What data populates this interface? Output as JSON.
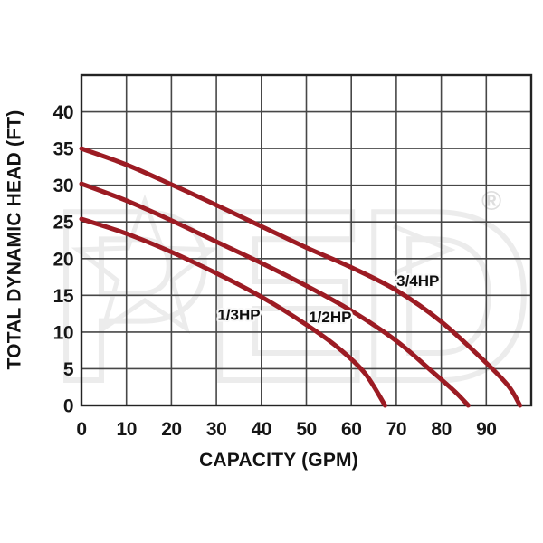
{
  "page": {
    "background": "#ffffff",
    "text_color": "#161616"
  },
  "watermark": {
    "text": "PED",
    "registered": "®",
    "color": "#ececec",
    "reg_color": "#dedede"
  },
  "chart_data": {
    "type": "line",
    "title": "",
    "xlabel": "CAPACITY (GPM)",
    "ylabel": "TOTAL DYNAMIC HEAD (FT)",
    "xlim": [
      0,
      100
    ],
    "ylim": [
      0,
      45
    ],
    "grid": true,
    "grid_x_step": 10,
    "grid_y_step": 5,
    "x_ticks": [
      0,
      10,
      20,
      30,
      40,
      50,
      60,
      70,
      80,
      90
    ],
    "y_ticks": [
      0,
      5,
      10,
      15,
      20,
      25,
      30,
      35,
      40
    ],
    "line_color": "#9c1b23",
    "grid_color": "#474747",
    "border_color": "#232323",
    "legend_position": "inline-labels",
    "series": [
      {
        "name": "1/3HP",
        "points": [
          [
            0,
            25.4
          ],
          [
            10,
            23.4
          ],
          [
            20,
            20.9
          ],
          [
            30,
            18.0
          ],
          [
            40,
            14.8
          ],
          [
            50,
            11.0
          ],
          [
            57,
            7.9
          ],
          [
            63,
            4.4
          ],
          [
            67.5,
            0
          ]
        ]
      },
      {
        "name": "1/2HP",
        "points": [
          [
            0,
            30.2
          ],
          [
            10,
            27.9
          ],
          [
            20,
            25.2
          ],
          [
            30,
            22.3
          ],
          [
            40,
            19.4
          ],
          [
            50,
            16.3
          ],
          [
            60,
            12.9
          ],
          [
            70,
            8.8
          ],
          [
            78,
            4.6
          ],
          [
            83,
            1.9
          ],
          [
            86,
            0
          ]
        ]
      },
      {
        "name": "3/4HP",
        "points": [
          [
            0,
            35.0
          ],
          [
            10,
            32.8
          ],
          [
            20,
            30.1
          ],
          [
            30,
            27.3
          ],
          [
            40,
            24.4
          ],
          [
            50,
            21.5
          ],
          [
            60,
            18.8
          ],
          [
            70,
            15.7
          ],
          [
            80,
            11.4
          ],
          [
            90,
            5.8
          ],
          [
            95,
            2.6
          ],
          [
            97.5,
            0
          ]
        ]
      }
    ],
    "annotations": [
      {
        "text": "1/3HP",
        "x": 35.0,
        "y": 12.4
      },
      {
        "text": "1/2HP",
        "x": 55.3,
        "y": 12.1
      },
      {
        "text": "3/4HP",
        "x": 74.8,
        "y": 17.0
      }
    ]
  }
}
